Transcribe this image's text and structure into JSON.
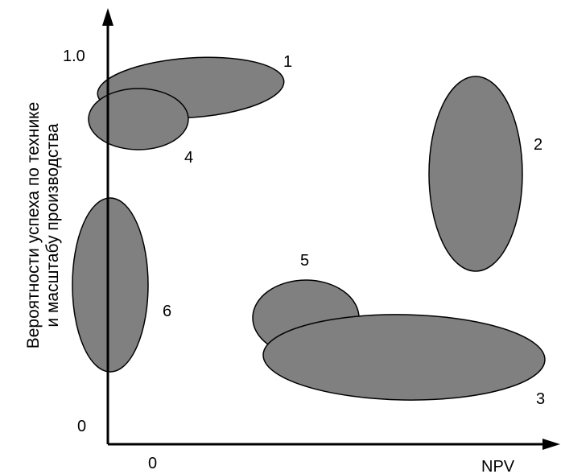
{
  "colors": {
    "blob_fill": "#808080",
    "blob_stroke": "#000000",
    "axis": "#000000",
    "background": "#ffffff"
  },
  "axes": {
    "y_label_line1": "Вероятности  успеха по технике",
    "y_label_line2": "и масштабу производства",
    "x_label": "NPV",
    "y_tick_top": "1.0",
    "y_tick_origin": "0",
    "x_tick_origin": "0"
  },
  "projects": [
    {
      "id": "1",
      "label": "1"
    },
    {
      "id": "2",
      "label": "2"
    },
    {
      "id": "3",
      "label": "3"
    },
    {
      "id": "4",
      "label": "4"
    },
    {
      "id": "5",
      "label": "5"
    },
    {
      "id": "6",
      "label": "6"
    }
  ]
}
